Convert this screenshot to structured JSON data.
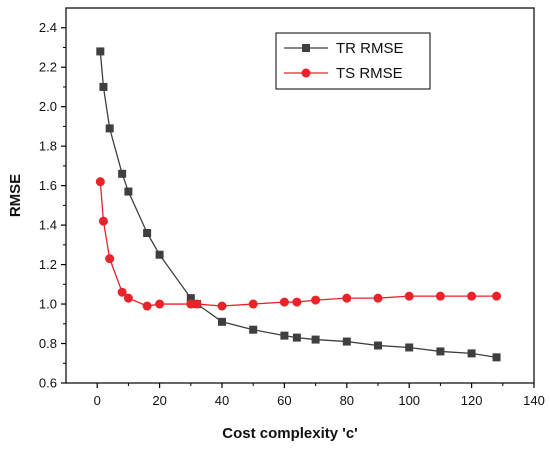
{
  "chart_data": {
    "type": "line",
    "xlabel": "Cost complexity 'c'",
    "ylabel": "RMSE",
    "xlim": [
      -10,
      140
    ],
    "ylim": [
      0.6,
      2.5
    ],
    "x_ticks": [
      0,
      20,
      40,
      60,
      80,
      100,
      120,
      140
    ],
    "y_ticks": [
      0.6,
      0.8,
      1.0,
      1.2,
      1.4,
      1.6,
      1.8,
      2.0,
      2.2,
      2.4
    ],
    "x_tick_labels": [
      "0",
      "20",
      "40",
      "60",
      "80",
      "100",
      "120",
      "140"
    ],
    "y_tick_labels": [
      "0.6",
      "0.8",
      "1.0",
      "1.2",
      "1.4",
      "1.6",
      "1.8",
      "2.0",
      "2.2",
      "2.4"
    ],
    "legend_position": "top-right",
    "grid": false,
    "series": [
      {
        "name": "TR RMSE",
        "color": "#3f3f3f",
        "marker": "square",
        "x": [
          1,
          2,
          4,
          8,
          10,
          16,
          20,
          30,
          32,
          40,
          50,
          60,
          64,
          70,
          80,
          90,
          100,
          110,
          120,
          128
        ],
        "y": [
          2.28,
          2.1,
          1.89,
          1.66,
          1.57,
          1.36,
          1.25,
          1.03,
          1.0,
          0.91,
          0.87,
          0.84,
          0.83,
          0.82,
          0.81,
          0.79,
          0.78,
          0.76,
          0.75,
          0.73
        ]
      },
      {
        "name": "TS RMSE",
        "color": "#e8242a",
        "marker": "circle",
        "x": [
          1,
          2,
          4,
          8,
          10,
          16,
          20,
          30,
          32,
          40,
          50,
          60,
          64,
          70,
          80,
          90,
          100,
          110,
          120,
          128
        ],
        "y": [
          1.62,
          1.42,
          1.23,
          1.06,
          1.03,
          0.99,
          1.0,
          1.0,
          1.0,
          0.99,
          1.0,
          1.01,
          1.01,
          1.02,
          1.03,
          1.03,
          1.04,
          1.04,
          1.04,
          1.04
        ]
      }
    ]
  }
}
